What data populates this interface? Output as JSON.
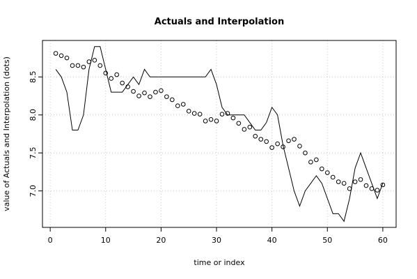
{
  "chart_data": {
    "type": "line",
    "title": "Actuals and Interpolation",
    "xlabel": "time or index",
    "ylabel": "value of Actuals and Interpolation (dots)",
    "xlim": [
      -1.4,
      62.4
    ],
    "ylim": [
      6.52,
      8.98
    ],
    "xticks": [
      0,
      10,
      20,
      30,
      40,
      50,
      60
    ],
    "yticks": [
      7.0,
      7.5,
      8.0,
      8.5
    ],
    "ytick_labels": [
      "7.0",
      "7.5",
      "8.0",
      "8.5"
    ],
    "grid": true,
    "series": [
      {
        "kind": "line",
        "x": [
          1,
          2,
          3,
          4,
          5,
          6,
          7,
          8,
          9,
          10,
          11,
          12,
          13,
          14,
          15,
          16,
          17,
          18,
          19,
          20,
          21,
          22,
          23,
          24,
          25,
          26,
          27,
          28,
          29,
          30,
          31,
          32,
          33,
          34,
          35,
          36,
          37,
          38,
          39,
          40,
          41,
          42,
          43,
          44,
          45,
          46,
          47,
          48,
          49,
          50,
          51,
          52,
          53,
          54,
          55,
          56,
          57,
          58,
          59,
          60
        ],
        "values": [
          8.6,
          8.5,
          8.3,
          7.8,
          7.8,
          8.0,
          8.6,
          8.9,
          8.9,
          8.6,
          8.3,
          8.3,
          8.3,
          8.4,
          8.5,
          8.4,
          8.6,
          8.5,
          8.5,
          8.5,
          8.5,
          8.5,
          8.5,
          8.5,
          8.5,
          8.5,
          8.5,
          8.5,
          8.6,
          8.4,
          8.1,
          8.0,
          8.0,
          8.0,
          8.0,
          7.9,
          7.8,
          7.8,
          7.9,
          8.1,
          8.0,
          7.6,
          7.3,
          7.0,
          6.8,
          7.0,
          7.1,
          7.2,
          7.1,
          6.9,
          6.7,
          6.7,
          6.6,
          6.9,
          7.3,
          7.5,
          7.3,
          7.1,
          6.9,
          7.1
        ]
      },
      {
        "kind": "points",
        "x": [
          1,
          2,
          3,
          4,
          5,
          6,
          7,
          8,
          9,
          10,
          11,
          12,
          13,
          14,
          15,
          16,
          17,
          18,
          19,
          20,
          21,
          22,
          23,
          24,
          25,
          26,
          27,
          28,
          29,
          30,
          31,
          32,
          33,
          34,
          35,
          36,
          37,
          38,
          39,
          40,
          41,
          42,
          43,
          44,
          45,
          46,
          47,
          48,
          49,
          50,
          51,
          52,
          53,
          54,
          55,
          56,
          57,
          58,
          59,
          60
        ],
        "values": [
          8.81,
          8.78,
          8.75,
          8.65,
          8.65,
          8.63,
          8.7,
          8.72,
          8.65,
          8.55,
          8.48,
          8.53,
          8.42,
          8.37,
          8.31,
          8.25,
          8.29,
          8.24,
          8.3,
          8.32,
          8.24,
          8.2,
          8.12,
          8.14,
          8.05,
          8.02,
          8.01,
          7.92,
          7.94,
          7.92,
          8.01,
          8.02,
          7.96,
          7.89,
          7.81,
          7.84,
          7.72,
          7.68,
          7.65,
          7.57,
          7.62,
          7.58,
          7.66,
          7.68,
          7.59,
          7.5,
          7.38,
          7.41,
          7.29,
          7.24,
          7.18,
          7.12,
          7.1,
          7.03,
          7.12,
          7.15,
          7.07,
          7.03,
          7.01,
          7.08
        ]
      }
    ]
  }
}
